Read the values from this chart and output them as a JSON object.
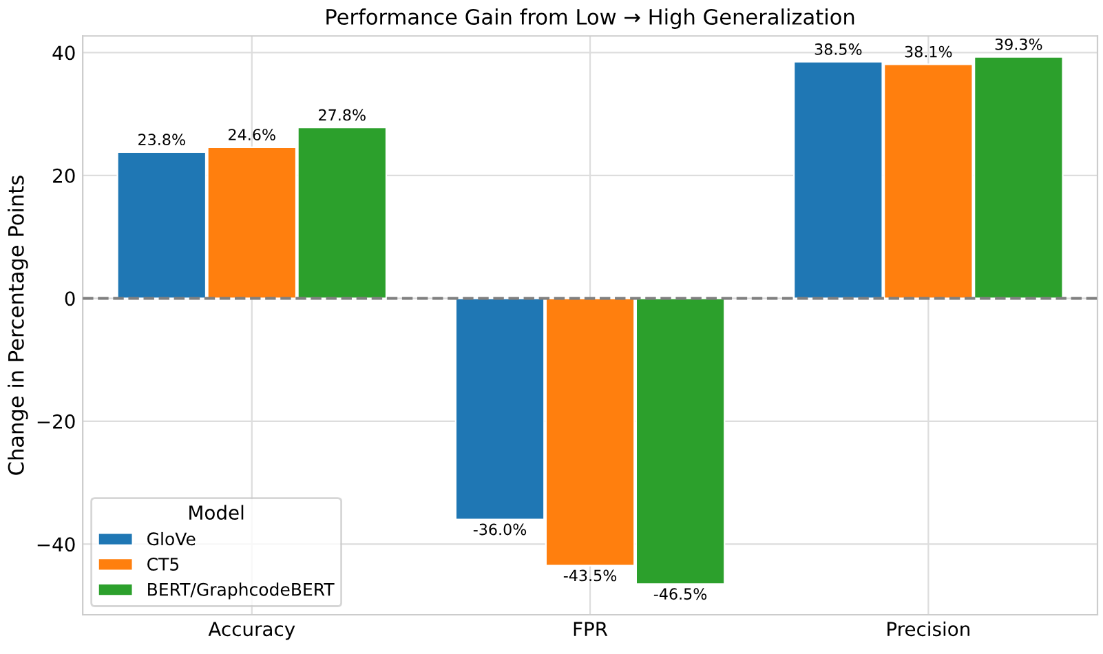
{
  "chart_data": {
    "type": "bar",
    "title": "Performance Gain from Low → High Generalization",
    "ylabel": "Change in Percentage Points",
    "categories": [
      "Accuracy",
      "FPR",
      "Precision"
    ],
    "series": [
      {
        "name": "GloVe",
        "color": "#1f77b4",
        "values": [
          23.8,
          -36.0,
          38.5
        ],
        "value_labels": [
          "23.8%",
          "-36.0%",
          "38.5%"
        ]
      },
      {
        "name": "CT5",
        "color": "#ff7f0e",
        "values": [
          24.6,
          -43.5,
          38.1
        ],
        "value_labels": [
          "24.6%",
          "-43.5%",
          "38.1%"
        ]
      },
      {
        "name": "BERT/GraphcodeBERT",
        "color": "#2ca02c",
        "values": [
          27.8,
          -46.5,
          39.3
        ],
        "value_labels": [
          "27.8%",
          "-46.5%",
          "39.3%"
        ]
      }
    ],
    "ylim": [
      -51.5,
      42.7
    ],
    "yticks": [
      {
        "value": -40,
        "label": "−40"
      },
      {
        "value": -20,
        "label": "−20"
      },
      0,
      20,
      40
    ],
    "ref_lines": [
      {
        "axis": "y",
        "value": 0,
        "label": null,
        "color": "#808080",
        "line_style": "dashed"
      }
    ],
    "grid": true,
    "legend": "bottom left",
    "legend_title": "Model"
  }
}
